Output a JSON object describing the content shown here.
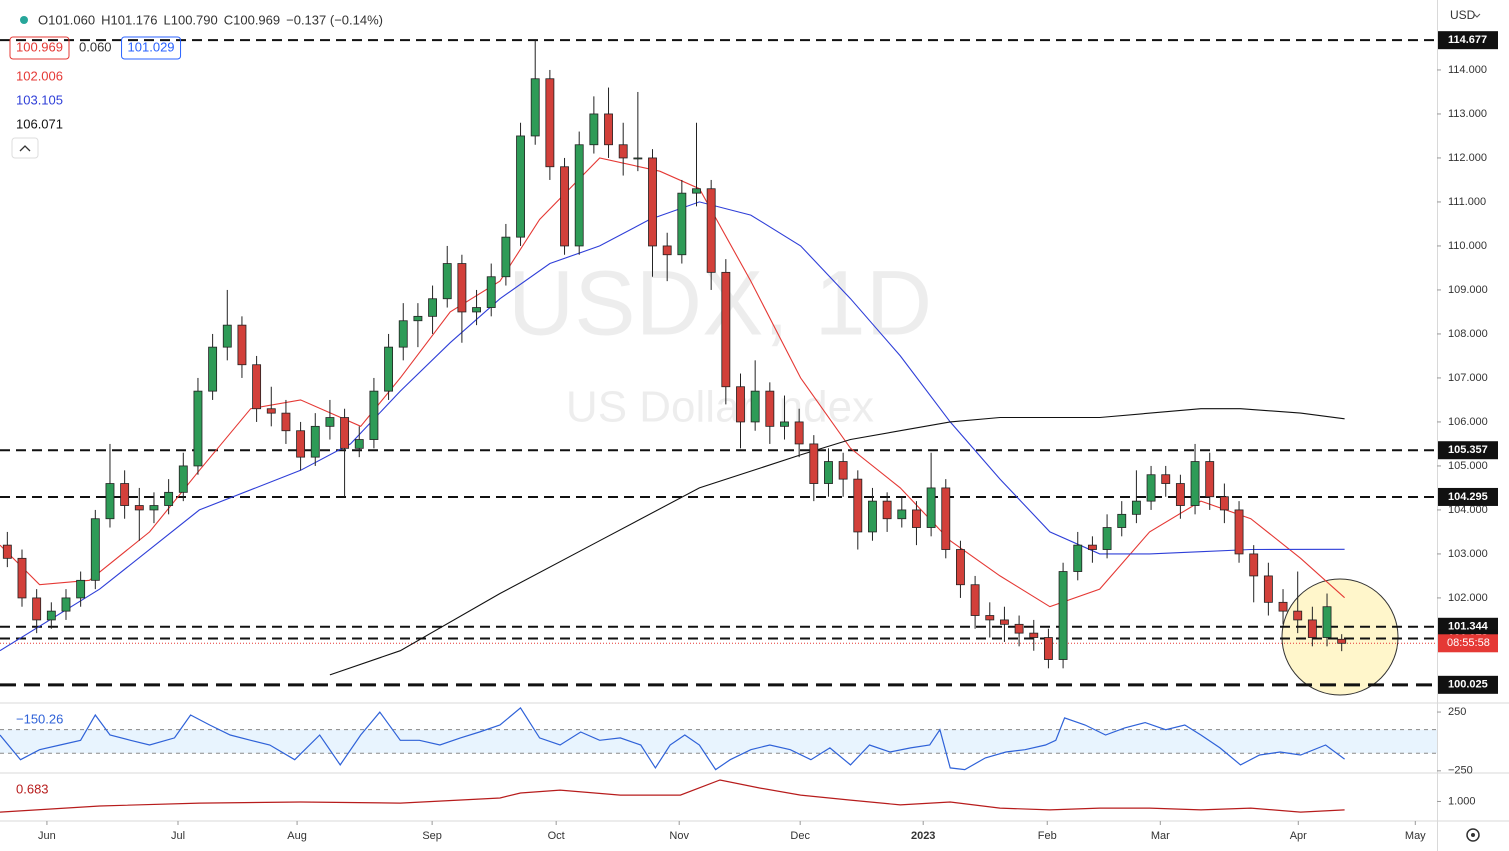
{
  "quote": [
    "O101.060",
    "H101.176",
    "L100.790",
    "C100.969",
    "−0.137 (−0.14%)"
  ],
  "price_boxes": [
    {
      "text": "100.969",
      "color": "#e53935"
    },
    {
      "text": "0.060"
    },
    {
      "text": "101.029",
      "color": "#2962ff"
    }
  ],
  "currency": "USD",
  "countdown": "08:55:58",
  "watermark": "USDX, 1D",
  "watermark_sub": "US Dollar Index",
  "chart_data": [
    {
      "type": "candlestick",
      "up_color": "#2e9b57",
      "down_color": "#d2403a",
      "xlim": [
        0,
        98
      ],
      "ylim": [
        99.68,
        115.59
      ],
      "yticks": [
        {
          "value": 102,
          "label": "102.000"
        },
        {
          "value": 103,
          "label": "103.000"
        },
        {
          "value": 104,
          "label": "104.000"
        },
        {
          "value": 105,
          "label": "105.000"
        },
        {
          "value": 106,
          "label": "106.000"
        },
        {
          "value": 107,
          "label": "107.000"
        },
        {
          "value": 108,
          "label": "108.000"
        },
        {
          "value": 109,
          "label": "109.000"
        },
        {
          "value": 110,
          "label": "110.000"
        },
        {
          "value": 111,
          "label": "111.000"
        },
        {
          "value": 112,
          "label": "112.000"
        },
        {
          "value": 113,
          "label": "113.000"
        },
        {
          "value": 114,
          "label": "114.000"
        }
      ],
      "xticks": [
        {
          "value": 3.2,
          "label": "Jun"
        },
        {
          "value": 12.14,
          "label": "Jul"
        },
        {
          "value": 20.26,
          "label": "Aug"
        },
        {
          "value": 29.47,
          "label": "Sep"
        },
        {
          "value": 37.93,
          "label": "Oct"
        },
        {
          "value": 46.32,
          "label": "Nov"
        },
        {
          "value": 54.57,
          "label": "Dec"
        },
        {
          "value": 62.96,
          "label": "2023"
        },
        {
          "value": 71.42,
          "label": "Feb"
        },
        {
          "value": 79.13,
          "label": "Mar"
        },
        {
          "value": 88.54,
          "label": "Apr"
        },
        {
          "value": 96.52,
          "label": "May"
        }
      ],
      "levels": [
        114.677,
        105.357,
        104.295,
        101.344,
        101.078,
        100.025
      ],
      "candles": [
        [
          103.2,
          103.5,
          102.7,
          102.9
        ],
        [
          102.9,
          103.1,
          101.8,
          102.0
        ],
        [
          102.0,
          102.2,
          101.2,
          101.5
        ],
        [
          101.5,
          101.9,
          101.3,
          101.7
        ],
        [
          101.7,
          102.2,
          101.5,
          102.0
        ],
        [
          102.0,
          102.6,
          101.8,
          102.4
        ],
        [
          102.4,
          104.0,
          102.2,
          103.8
        ],
        [
          103.8,
          105.5,
          103.6,
          104.6
        ],
        [
          104.6,
          104.9,
          103.8,
          104.1
        ],
        [
          104.1,
          104.5,
          103.3,
          104.0
        ],
        [
          104.0,
          104.4,
          103.7,
          104.1
        ],
        [
          104.1,
          104.7,
          103.9,
          104.4
        ],
        [
          104.4,
          105.3,
          104.2,
          105.0
        ],
        [
          105.0,
          107.0,
          104.8,
          106.7
        ],
        [
          106.7,
          108.0,
          106.5,
          107.7
        ],
        [
          107.7,
          109.0,
          107.4,
          108.2
        ],
        [
          108.2,
          108.4,
          107.0,
          107.3
        ],
        [
          107.3,
          107.5,
          106.0,
          106.3
        ],
        [
          106.3,
          106.8,
          105.9,
          106.2
        ],
        [
          106.2,
          106.5,
          105.5,
          105.8
        ],
        [
          105.8,
          106.0,
          104.9,
          105.2
        ],
        [
          105.2,
          106.2,
          105.0,
          105.9
        ],
        [
          105.9,
          106.5,
          105.6,
          106.1
        ],
        [
          106.1,
          106.3,
          104.3,
          105.4
        ],
        [
          105.4,
          105.9,
          105.2,
          105.6
        ],
        [
          105.6,
          107.0,
          105.4,
          106.7
        ],
        [
          106.7,
          108.0,
          106.5,
          107.7
        ],
        [
          107.7,
          108.7,
          107.4,
          108.3
        ],
        [
          108.3,
          108.7,
          107.7,
          108.4
        ],
        [
          108.4,
          109.1,
          108.0,
          108.8
        ],
        [
          108.8,
          110.0,
          108.6,
          109.6
        ],
        [
          109.6,
          109.8,
          107.8,
          108.5
        ],
        [
          108.5,
          109.0,
          108.2,
          108.6
        ],
        [
          108.6,
          109.6,
          108.4,
          109.3
        ],
        [
          109.3,
          110.5,
          109.1,
          110.2
        ],
        [
          110.2,
          112.8,
          110.0,
          112.5
        ],
        [
          112.5,
          114.7,
          112.3,
          113.8
        ],
        [
          113.8,
          114.0,
          111.5,
          111.8
        ],
        [
          111.8,
          112.0,
          109.8,
          110.0
        ],
        [
          110.0,
          112.6,
          109.8,
          112.3
        ],
        [
          112.3,
          113.4,
          112.1,
          113.0
        ],
        [
          113.0,
          113.6,
          112.0,
          112.3
        ],
        [
          112.3,
          112.8,
          111.6,
          112.0
        ],
        [
          112.0,
          113.5,
          111.7,
          112.0
        ],
        [
          112.0,
          112.2,
          109.3,
          110.0
        ],
        [
          110.0,
          110.3,
          109.2,
          109.8
        ],
        [
          109.8,
          111.5,
          109.6,
          111.2
        ],
        [
          111.2,
          112.8,
          110.9,
          111.3
        ],
        [
          111.3,
          111.5,
          109.0,
          109.4
        ],
        [
          109.4,
          109.7,
          106.4,
          106.8
        ],
        [
          106.8,
          107.1,
          105.4,
          106.0
        ],
        [
          106.0,
          107.4,
          105.8,
          106.7
        ],
        [
          106.7,
          106.9,
          105.5,
          105.9
        ],
        [
          105.9,
          106.6,
          105.6,
          106.0
        ],
        [
          106.0,
          106.3,
          105.2,
          105.5
        ],
        [
          105.5,
          105.7,
          104.2,
          104.6
        ],
        [
          104.6,
          105.4,
          104.3,
          105.1
        ],
        [
          105.1,
          105.3,
          104.3,
          104.7
        ],
        [
          104.7,
          104.9,
          103.1,
          103.5
        ],
        [
          103.5,
          104.5,
          103.3,
          104.2
        ],
        [
          104.2,
          104.4,
          103.5,
          103.8
        ],
        [
          103.8,
          104.3,
          103.6,
          104.0
        ],
        [
          104.0,
          104.2,
          103.2,
          103.6
        ],
        [
          103.6,
          105.3,
          103.4,
          104.5
        ],
        [
          104.5,
          104.7,
          102.9,
          103.1
        ],
        [
          103.1,
          103.3,
          102.0,
          102.3
        ],
        [
          102.3,
          102.5,
          101.3,
          101.6
        ],
        [
          101.6,
          101.9,
          101.1,
          101.5
        ],
        [
          101.5,
          101.8,
          101.0,
          101.4
        ],
        [
          101.4,
          101.6,
          100.9,
          101.2
        ],
        [
          101.2,
          101.5,
          100.8,
          101.1
        ],
        [
          101.1,
          101.3,
          100.4,
          100.6
        ],
        [
          100.6,
          102.8,
          100.4,
          102.6
        ],
        [
          102.6,
          103.5,
          102.4,
          103.2
        ],
        [
          103.2,
          103.4,
          102.8,
          103.1
        ],
        [
          103.1,
          103.9,
          102.9,
          103.6
        ],
        [
          103.6,
          104.2,
          103.4,
          103.9
        ],
        [
          103.9,
          104.9,
          103.7,
          104.2
        ],
        [
          104.2,
          105.0,
          104.0,
          104.8
        ],
        [
          104.8,
          105.0,
          104.3,
          104.6
        ],
        [
          104.6,
          104.8,
          103.8,
          104.1
        ],
        [
          104.1,
          105.5,
          103.9,
          105.1
        ],
        [
          105.1,
          105.3,
          104.0,
          104.3
        ],
        [
          104.3,
          104.6,
          103.7,
          104.0
        ],
        [
          104.0,
          104.2,
          102.8,
          103.0
        ],
        [
          103.0,
          103.2,
          101.9,
          102.5
        ],
        [
          102.5,
          102.8,
          101.6,
          101.9
        ],
        [
          101.9,
          102.2,
          101.4,
          101.7
        ],
        [
          101.7,
          102.6,
          101.2,
          101.5
        ],
        [
          101.5,
          101.8,
          100.9,
          101.1
        ],
        [
          101.1,
          102.1,
          100.9,
          101.8
        ],
        [
          101.06,
          101.176,
          100.79,
          100.969
        ]
      ],
      "series": [
        {
          "label": "102.006",
          "color": "#e53935",
          "x": [
            0,
            2.7,
            6.1,
            10.2,
            13.6,
            17.1,
            20.5,
            24.6,
            27.3,
            30.7,
            34.1,
            36.8,
            40.9,
            45.0,
            47.7,
            51.2,
            54.6,
            58.0,
            61.4,
            64.8,
            68.2,
            71.6,
            75.0,
            78.4,
            81.9,
            85.3,
            88.7,
            91.7
          ],
          "values": [
            103.2,
            102.3,
            102.4,
            103.5,
            104.9,
            106.3,
            106.5,
            105.9,
            107.0,
            108.5,
            109.2,
            110.6,
            112.0,
            111.7,
            111.3,
            109.2,
            107.0,
            105.4,
            104.5,
            103.3,
            102.5,
            101.8,
            102.2,
            103.5,
            104.2,
            103.8,
            102.9,
            102.006
          ]
        },
        {
          "label": "103.105",
          "color": "#2f3fd8",
          "x": [
            0,
            6.8,
            13.6,
            20.5,
            23.9,
            27.3,
            30.7,
            34.1,
            37.5,
            40.9,
            44.3,
            47.7,
            51.2,
            54.6,
            58.0,
            61.4,
            64.8,
            68.2,
            71.6,
            75.0,
            78.4,
            81.9,
            85.3,
            91.7
          ],
          "values": [
            100.8,
            102.2,
            104.0,
            104.9,
            105.5,
            106.7,
            107.8,
            108.8,
            109.6,
            110.0,
            110.6,
            111.0,
            110.7,
            110.0,
            108.8,
            107.5,
            106.0,
            104.7,
            103.5,
            103.0,
            103.0,
            103.05,
            103.1,
            103.105
          ]
        },
        {
          "label": "106.071",
          "color": "#111111",
          "x": [
            22.5,
            27.3,
            34.1,
            40.9,
            47.7,
            54.6,
            58.0,
            61.4,
            64.8,
            68.2,
            75.0,
            81.9,
            84.6,
            88.7,
            91.7
          ],
          "values": [
            100.25,
            100.8,
            102.1,
            103.3,
            104.5,
            105.25,
            105.6,
            105.8,
            106.0,
            106.1,
            106.1,
            106.3,
            106.3,
            106.2,
            106.071
          ]
        }
      ]
    },
    {
      "type": "line",
      "color": "#2f62d8",
      "band_color": "#2196f3",
      "label": "−150.26",
      "xlim": [
        0,
        98
      ],
      "ylim": [
        -260,
        310
      ],
      "yticks": [
        250,
        {
          "value": -250,
          "label": "−250"
        }
      ],
      "bands": [
        100,
        -100
      ],
      "x": [
        0,
        1.4,
        2.7,
        4.1,
        5.5,
        6.5,
        7.5,
        8.9,
        10.2,
        11.9,
        13.0,
        14.3,
        15.7,
        17.1,
        18.4,
        20.1,
        21.8,
        23.2,
        24.6,
        25.9,
        27.3,
        28.6,
        30.0,
        31.4,
        32.7,
        34.1,
        35.5,
        36.8,
        38.2,
        39.6,
        40.9,
        42.3,
        43.7,
        44.7,
        45.7,
        46.7,
        47.7,
        48.8,
        49.8,
        51.2,
        52.5,
        53.9,
        55.3,
        56.6,
        58.0,
        59.3,
        60.7,
        62.1,
        63.4,
        64.1,
        64.8,
        65.8,
        67.2,
        68.6,
        69.9,
        71.3,
        72.0,
        72.6,
        74.0,
        75.4,
        76.7,
        78.1,
        79.5,
        80.8,
        81.9,
        83.2,
        84.6,
        85.9,
        87.3,
        88.7,
        90.4,
        91.7
      ],
      "values": [
        55,
        -155,
        -70,
        -30,
        10,
        225,
        55,
        10,
        -30,
        30,
        225,
        140,
        55,
        10,
        -30,
        -155,
        55,
        -200,
        55,
        250,
        10,
        10,
        -30,
        30,
        80,
        140,
        285,
        30,
        -30,
        80,
        10,
        30,
        -30,
        -225,
        -30,
        55,
        -30,
        -240,
        -155,
        -70,
        -30,
        -70,
        -155,
        -55,
        -200,
        -30,
        -90,
        -55,
        -30,
        100,
        -225,
        -240,
        -140,
        -90,
        -70,
        -30,
        10,
        200,
        140,
        55,
        115,
        160,
        100,
        140,
        55,
        -55,
        -200,
        -115,
        -90,
        -115,
        -30,
        -150.26
      ]
    },
    {
      "type": "line",
      "color": "#b71c1c",
      "label": "0.683",
      "xlim": [
        0,
        98
      ],
      "ylim": [
        0.3,
        2.0
      ],
      "yticks": [
        {
          "value": 1,
          "label": "1.000"
        }
      ],
      "x": [
        0,
        6.8,
        13.6,
        20.5,
        27.3,
        34.1,
        35.5,
        38.2,
        42.3,
        46.4,
        49.1,
        51.8,
        54.6,
        58.0,
        61.4,
        64.8,
        68.2,
        71.6,
        75.0,
        78.4,
        81.9,
        85.3,
        88.7,
        91.7
      ],
      "values": [
        0.6,
        0.83,
        0.94,
        0.98,
        0.94,
        1.13,
        1.32,
        1.43,
        1.24,
        1.24,
        1.81,
        1.51,
        1.24,
        1.05,
        0.87,
        0.98,
        0.75,
        0.68,
        0.75,
        0.75,
        0.68,
        0.75,
        0.6,
        0.683
      ]
    }
  ]
}
